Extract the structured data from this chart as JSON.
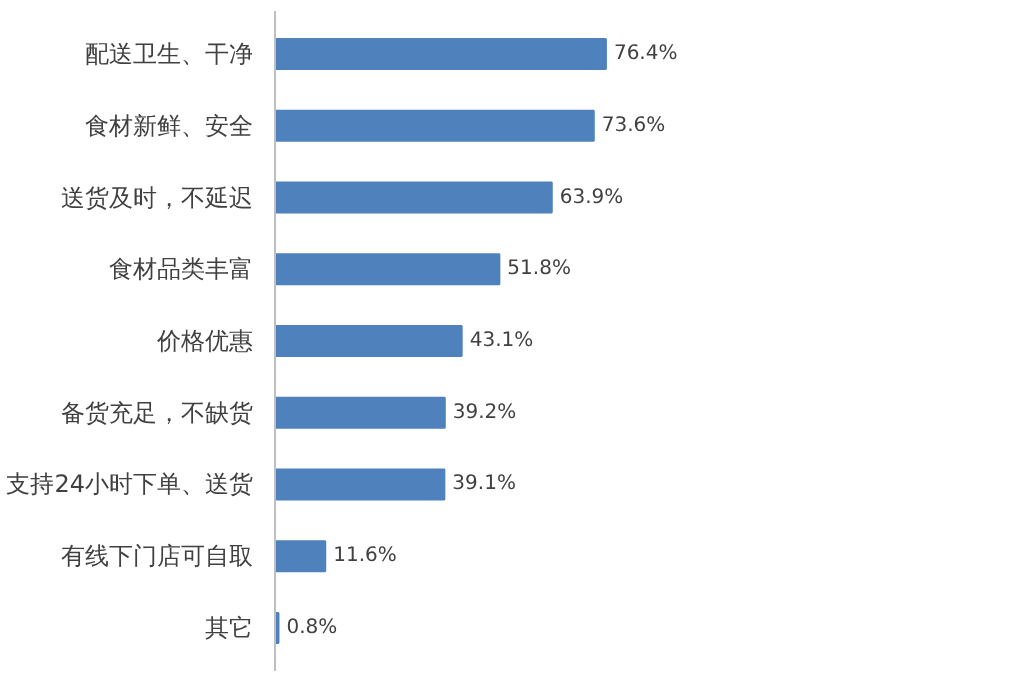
{
  "chart_data": {
    "type": "bar",
    "orientation": "horizontal",
    "categories": [
      "配送卫生、干净",
      "食材新鲜、安全",
      "送货及时，不延迟",
      "食材品类丰富",
      "价格优惠",
      "备货充足，不缺货",
      "支持24小时下单、送货",
      "有线下门店可自取",
      "其它"
    ],
    "values": [
      76.4,
      73.6,
      63.9,
      51.8,
      43.1,
      39.2,
      39.1,
      11.6,
      0.8
    ],
    "color": "#4f81bd",
    "value_labels": [
      "76.4%",
      "73.6%",
      "63.9%",
      "51.8%",
      "43.1%",
      "39.2%",
      "39.1%",
      "11.6%",
      "0.8%"
    ]
  }
}
